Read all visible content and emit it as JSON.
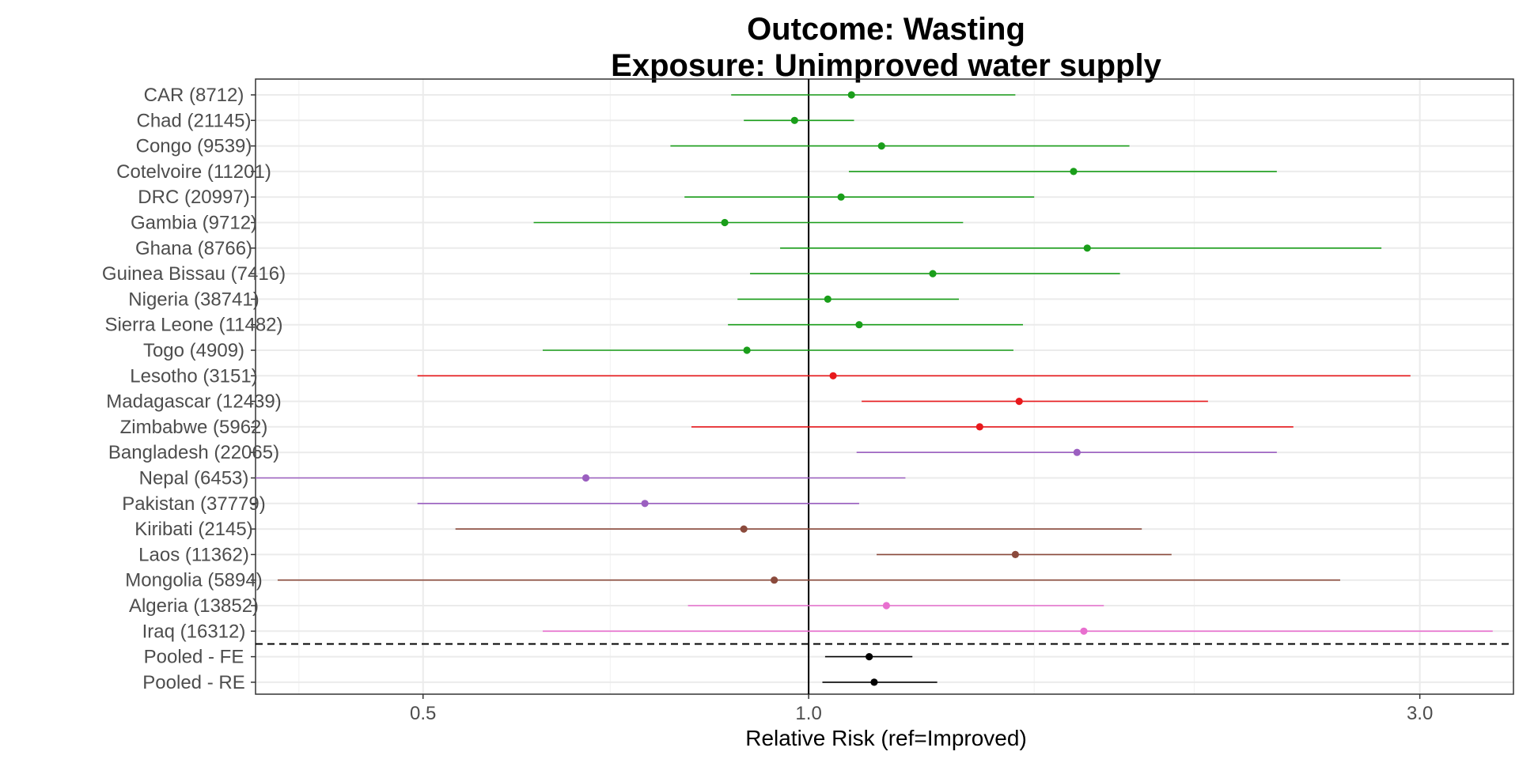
{
  "chart_data": {
    "type": "forest",
    "title_line1": "Outcome: Wasting",
    "title_line2": "Exposure: Unimproved water supply",
    "xlabel": "Relative Risk (ref=Improved)",
    "x_scale": "log",
    "xlim": [
      0.37,
      3.55
    ],
    "xticks": [
      {
        "value": 0.5,
        "label": "0.5"
      },
      {
        "value": 1.0,
        "label": "1.0"
      },
      {
        "value": 3.0,
        "label": "3.0"
      }
    ],
    "x_minor_gridlines": [
      0.4,
      0.7,
      1.5,
      2.0
    ],
    "reference_line": 1.0,
    "grid": true,
    "rows": [
      {
        "label": "CAR (8712)",
        "rr": 1.08,
        "lo": 0.87,
        "hi": 1.45,
        "color": "#1a9e1a"
      },
      {
        "label": "Chad (21145)",
        "rr": 0.975,
        "lo": 0.89,
        "hi": 1.085,
        "color": "#1a9e1a"
      },
      {
        "label": "Congo (9539)",
        "rr": 1.14,
        "lo": 0.78,
        "hi": 1.78,
        "color": "#1a9e1a"
      },
      {
        "label": "Cotelvoire (11201)",
        "rr": 1.61,
        "lo": 1.075,
        "hi": 2.32,
        "color": "#1a9e1a"
      },
      {
        "label": "DRC (20997)",
        "rr": 1.06,
        "lo": 0.8,
        "hi": 1.5,
        "color": "#1a9e1a"
      },
      {
        "label": "Gambia (9712)",
        "rr": 0.86,
        "lo": 0.61,
        "hi": 1.32,
        "color": "#1a9e1a"
      },
      {
        "label": "Ghana (8766)",
        "rr": 1.65,
        "lo": 0.95,
        "hi": 2.8,
        "color": "#1a9e1a"
      },
      {
        "label": "Guinea Bissau (7416)",
        "rr": 1.25,
        "lo": 0.9,
        "hi": 1.75,
        "color": "#1a9e1a"
      },
      {
        "label": "Nigeria (38741)",
        "rr": 1.035,
        "lo": 0.88,
        "hi": 1.31,
        "color": "#1a9e1a"
      },
      {
        "label": "Sierra Leone (11482)",
        "rr": 1.095,
        "lo": 0.865,
        "hi": 1.47,
        "color": "#1a9e1a"
      },
      {
        "label": "Togo (4909)",
        "rr": 0.895,
        "lo": 0.62,
        "hi": 1.445,
        "color": "#1a9e1a"
      },
      {
        "label": "Lesotho (3151)",
        "rr": 1.045,
        "lo": 0.495,
        "hi": 2.95,
        "color": "#e8191c"
      },
      {
        "label": "Madagascar (12439)",
        "rr": 1.46,
        "lo": 1.1,
        "hi": 2.05,
        "color": "#e8191c"
      },
      {
        "label": "Zimbabwe (5962)",
        "rr": 1.36,
        "lo": 0.81,
        "hi": 2.39,
        "color": "#e8191c"
      },
      {
        "label": "Bangladesh (22065)",
        "rr": 1.62,
        "lo": 1.09,
        "hi": 2.32,
        "color": "#9b5fc0"
      },
      {
        "label": "Nepal (6453)",
        "rr": 0.67,
        "lo": 0.37,
        "hi": 1.19,
        "color": "#9b5fc0"
      },
      {
        "label": "Pakistan (37779)",
        "rr": 0.745,
        "lo": 0.495,
        "hi": 1.095,
        "color": "#9b5fc0"
      },
      {
        "label": "Kiribati (2145)",
        "rr": 0.89,
        "lo": 0.53,
        "hi": 1.82,
        "color": "#8b4a3c"
      },
      {
        "label": "Laos (11362)",
        "rr": 1.45,
        "lo": 1.13,
        "hi": 1.92,
        "color": "#8b4a3c"
      },
      {
        "label": "Mongolia (5894)",
        "rr": 0.94,
        "lo": 0.385,
        "hi": 2.6,
        "color": "#8b4a3c"
      },
      {
        "label": "Algeria (13852)",
        "rr": 1.15,
        "lo": 0.805,
        "hi": 1.7,
        "color": "#e86fcf"
      },
      {
        "label": "Iraq (16312)",
        "rr": 1.64,
        "lo": 0.62,
        "hi": 3.42,
        "color": "#e86fcf"
      },
      {
        "label": "Pooled - FE",
        "rr": 1.115,
        "lo": 1.03,
        "hi": 1.205,
        "color": "#000000"
      },
      {
        "label": "Pooled - RE",
        "rr": 1.125,
        "lo": 1.025,
        "hi": 1.26,
        "color": "#000000"
      }
    ],
    "separator_after_row": 21
  }
}
